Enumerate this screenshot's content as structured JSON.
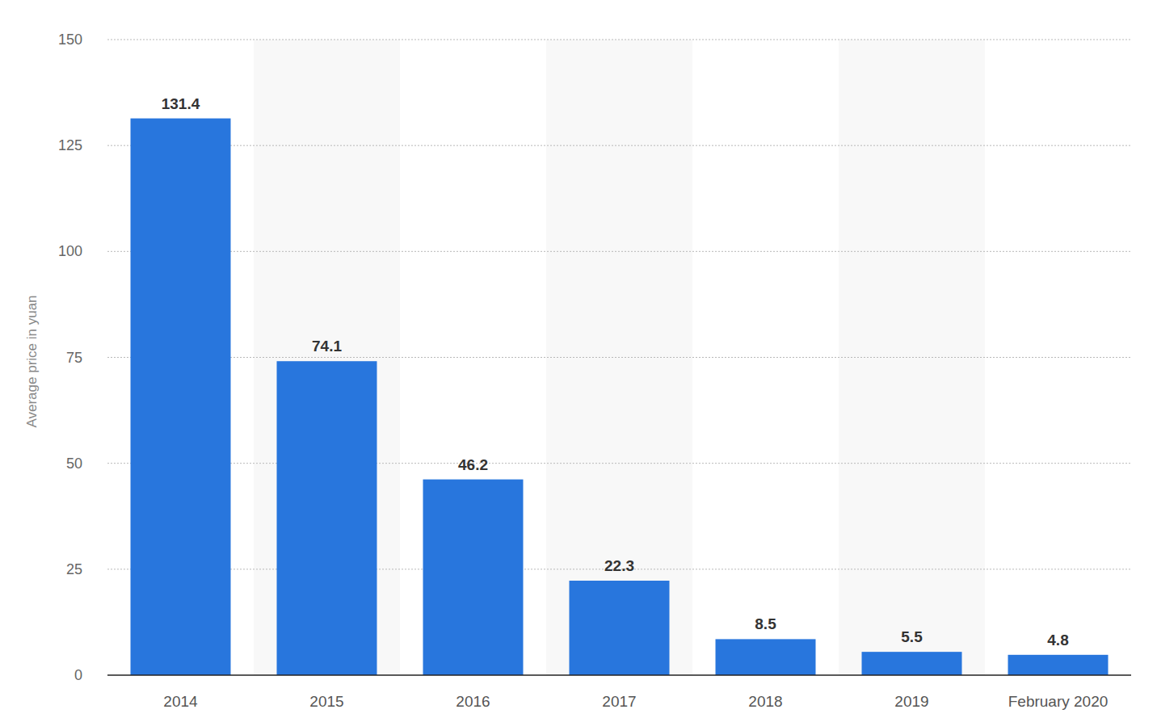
{
  "chart_data": {
    "type": "bar",
    "y_label": "Average price in yuan",
    "categories": [
      "2014",
      "2015",
      "2016",
      "2017",
      "2018",
      "2019",
      "February 2020"
    ],
    "values": [
      131.4,
      74.1,
      46.2,
      22.3,
      8.5,
      5.5,
      4.8
    ],
    "color": "#2876dd",
    "ylim": [
      0,
      150
    ],
    "yticks": [
      0,
      25,
      50,
      75,
      100,
      125,
      150
    ],
    "grid": true,
    "data_labels": true
  }
}
